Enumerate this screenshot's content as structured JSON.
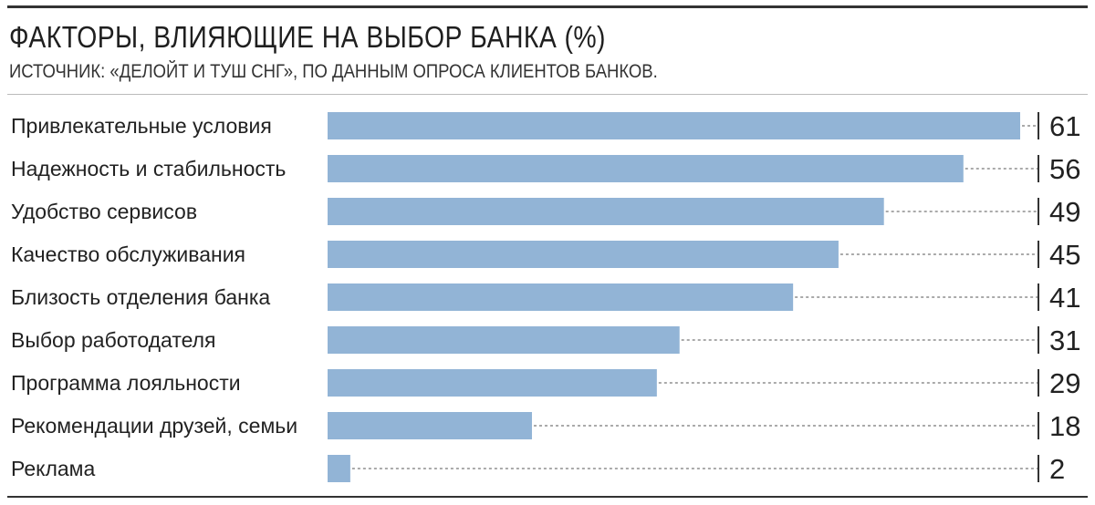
{
  "chart_data": {
    "type": "bar",
    "orientation": "horizontal",
    "title": "ФАКТОРЫ, ВЛИЯЮЩИЕ НА ВЫБОР БАНКА (%)",
    "subtitle": "ИСТОЧНИК: «ДЕЛОЙТ И ТУШ СНГ», ПО ДАННЫМ ОПРОСА КЛИЕНТОВ БАНКОВ.",
    "categories": [
      "Привлекательные условия",
      "Надежность и стабильность",
      "Удобство сервисов",
      "Качество обслуживания",
      "Близость отделения банка",
      "Выбор работодателя",
      "Программа лояльности",
      "Рекомендации друзей, семьи",
      "Реклама"
    ],
    "values": [
      61,
      56,
      49,
      45,
      41,
      31,
      29,
      18,
      2
    ],
    "xlim": [
      0,
      61
    ],
    "grid": false,
    "bar_color": "#92b4d6"
  }
}
